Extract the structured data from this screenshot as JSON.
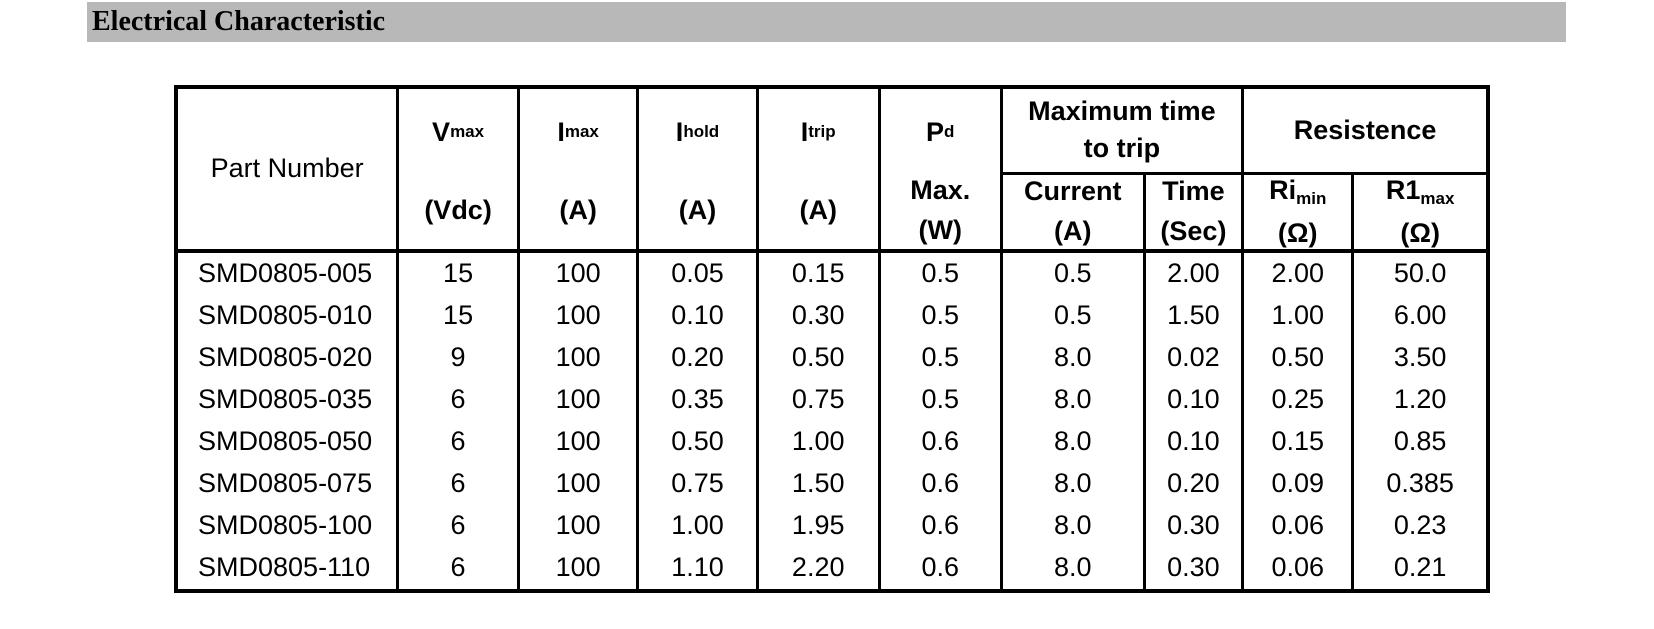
{
  "page": {
    "title": "Electrical Characteristic"
  },
  "colors": {
    "title_bar_bg": "#b8b8b8",
    "border": "#000000",
    "text": "#000000",
    "page_bg": "#ffffff"
  },
  "table": {
    "header": {
      "part_number": "Part Number",
      "v_max": {
        "sym": "V",
        "sub": "max",
        "unit": "(Vdc)"
      },
      "i_max": {
        "sym": "I",
        "sub": "max",
        "unit": "(A)"
      },
      "i_hold": {
        "sym": "I",
        "sub": "hold",
        "unit": "(A)"
      },
      "i_trip": {
        "sym": "I",
        "sub": "trip",
        "unit": "(A)"
      },
      "p_d": {
        "sym": "P",
        "sub": "d",
        "line2": "Max.",
        "unit": "(W)"
      },
      "max_time_group": "Maximum time to trip",
      "resistance_group": "Resistence",
      "current": {
        "label": "Current",
        "unit": "(A)"
      },
      "time": {
        "label": "Time",
        "unit": "(Sec)"
      },
      "ri_min": {
        "sym": "Ri",
        "sub": "min",
        "unit": "(Ω)"
      },
      "r1_max": {
        "sym": "R1",
        "sub": "max",
        "unit": "(Ω)"
      }
    },
    "rows": [
      [
        "SMD0805-005",
        "15",
        "100",
        "0.05",
        "0.15",
        "0.5",
        "0.5",
        "2.00",
        "2.00",
        "50.0"
      ],
      [
        "SMD0805-010",
        "15",
        "100",
        "0.10",
        "0.30",
        "0.5",
        "0.5",
        "1.50",
        "1.00",
        "6.00"
      ],
      [
        "SMD0805-020",
        "9",
        "100",
        "0.20",
        "0.50",
        "0.5",
        "8.0",
        "0.02",
        "0.50",
        "3.50"
      ],
      [
        "SMD0805-035",
        "6",
        "100",
        "0.35",
        "0.75",
        "0.5",
        "8.0",
        "0.10",
        "0.25",
        "1.20"
      ],
      [
        "SMD0805-050",
        "6",
        "100",
        "0.50",
        "1.00",
        "0.6",
        "8.0",
        "0.10",
        "0.15",
        "0.85"
      ],
      [
        "SMD0805-075",
        "6",
        "100",
        "0.75",
        "1.50",
        "0.6",
        "8.0",
        "0.20",
        "0.09",
        "0.385"
      ],
      [
        "SMD0805-100",
        "6",
        "100",
        "1.00",
        "1.95",
        "0.6",
        "8.0",
        "0.30",
        "0.06",
        "0.23"
      ],
      [
        "SMD0805-110",
        "6",
        "100",
        "1.10",
        "2.20",
        "0.6",
        "8.0",
        "0.30",
        "0.06",
        "0.21"
      ]
    ]
  }
}
